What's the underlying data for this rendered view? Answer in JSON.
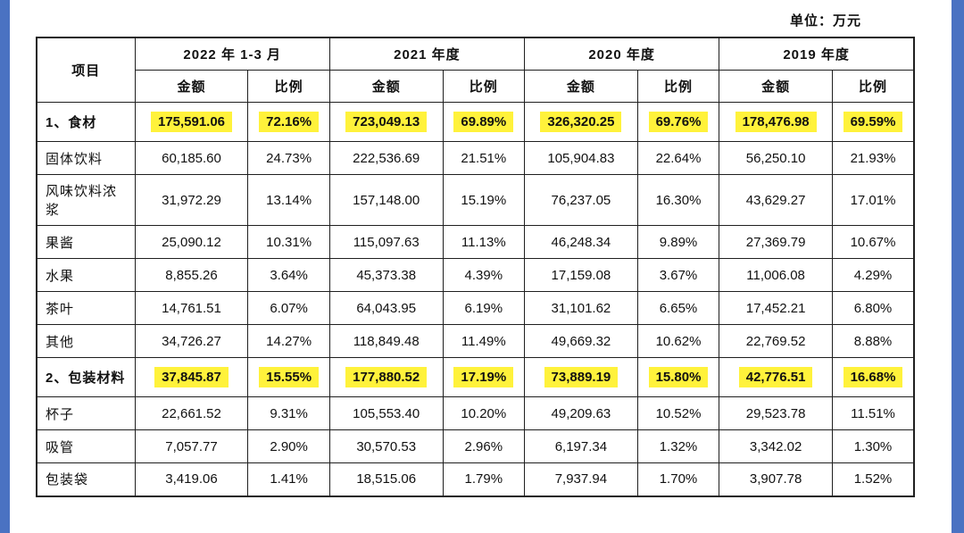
{
  "unit_label": "单位：万元",
  "colors": {
    "highlight": "#fff23b",
    "edge_bar": "#4a72c2"
  },
  "table": {
    "item_header": "项目",
    "periods": [
      "2022 年 1-3 月",
      "2021 年度",
      "2020 年度",
      "2019 年度"
    ],
    "amount_header": "金额",
    "ratio_header": "比例",
    "rows": [
      {
        "item": "1、食材",
        "highlight": true,
        "values": [
          "175,591.06",
          "72.16%",
          "723,049.13",
          "69.89%",
          "326,320.25",
          "69.76%",
          "178,476.98",
          "69.59%"
        ]
      },
      {
        "item": "固体饮料",
        "highlight": false,
        "values": [
          "60,185.60",
          "24.73%",
          "222,536.69",
          "21.51%",
          "105,904.83",
          "22.64%",
          "56,250.10",
          "21.93%"
        ]
      },
      {
        "item": "风味饮料浓浆",
        "highlight": false,
        "values": [
          "31,972.29",
          "13.14%",
          "157,148.00",
          "15.19%",
          "76,237.05",
          "16.30%",
          "43,629.27",
          "17.01%"
        ]
      },
      {
        "item": "果酱",
        "highlight": false,
        "values": [
          "25,090.12",
          "10.31%",
          "115,097.63",
          "11.13%",
          "46,248.34",
          "9.89%",
          "27,369.79",
          "10.67%"
        ]
      },
      {
        "item": "水果",
        "highlight": false,
        "values": [
          "8,855.26",
          "3.64%",
          "45,373.38",
          "4.39%",
          "17,159.08",
          "3.67%",
          "11,006.08",
          "4.29%"
        ]
      },
      {
        "item": "茶叶",
        "highlight": false,
        "values": [
          "14,761.51",
          "6.07%",
          "64,043.95",
          "6.19%",
          "31,101.62",
          "6.65%",
          "17,452.21",
          "6.80%"
        ]
      },
      {
        "item": "其他",
        "highlight": false,
        "values": [
          "34,726.27",
          "14.27%",
          "118,849.48",
          "11.49%",
          "49,669.32",
          "10.62%",
          "22,769.52",
          "8.88%"
        ]
      },
      {
        "item": "2、包装材料",
        "highlight": true,
        "values": [
          "37,845.87",
          "15.55%",
          "177,880.52",
          "17.19%",
          "73,889.19",
          "15.80%",
          "42,776.51",
          "16.68%"
        ]
      },
      {
        "item": "杯子",
        "highlight": false,
        "values": [
          "22,661.52",
          "9.31%",
          "105,553.40",
          "10.20%",
          "49,209.63",
          "10.52%",
          "29,523.78",
          "11.51%"
        ]
      },
      {
        "item": "吸管",
        "highlight": false,
        "values": [
          "7,057.77",
          "2.90%",
          "30,570.53",
          "2.96%",
          "6,197.34",
          "1.32%",
          "3,342.02",
          "1.30%"
        ]
      },
      {
        "item": "包装袋",
        "highlight": false,
        "values": [
          "3,419.06",
          "1.41%",
          "18,515.06",
          "1.79%",
          "7,937.94",
          "1.70%",
          "3,907.78",
          "1.52%"
        ]
      }
    ]
  }
}
